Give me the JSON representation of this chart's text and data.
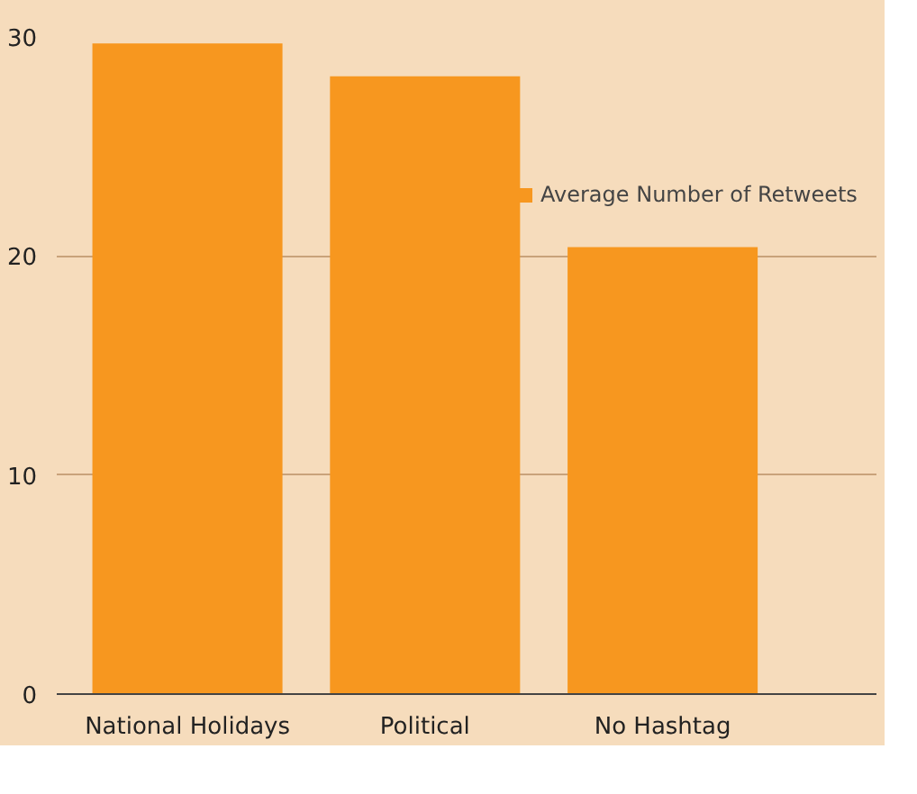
{
  "chart_data": {
    "type": "bar",
    "categories": [
      "National Holidays",
      "Political",
      "No Hashtag"
    ],
    "series": [
      {
        "name": "Average Number of Retweets",
        "color": "#f7971f",
        "values": [
          29.7,
          28.2,
          20.4
        ]
      }
    ],
    "ylim": [
      0,
      30
    ],
    "yticks": [
      0,
      10,
      20,
      30
    ],
    "grid": "y",
    "legend": "top"
  }
}
